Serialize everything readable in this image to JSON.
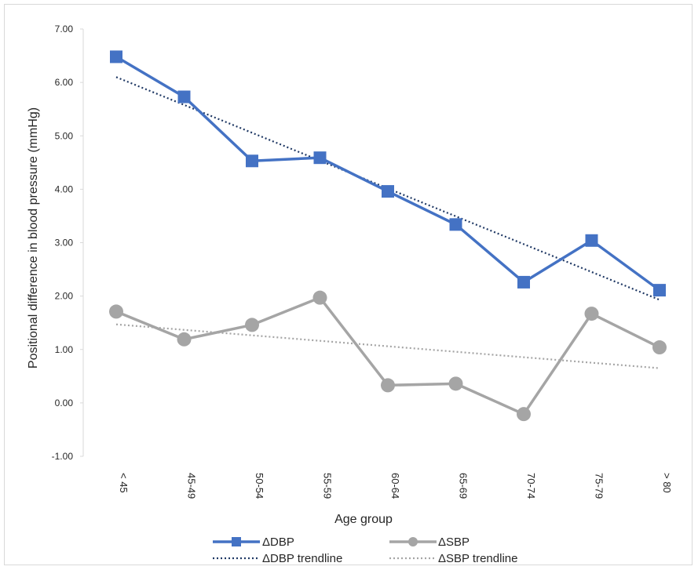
{
  "chart_data": {
    "type": "line",
    "title": "",
    "xlabel": "Age group",
    "ylabel": "Positional difference in blood pressure (mmHg)",
    "categories": [
      "< 45",
      "45-49",
      "50-54",
      "55-59",
      "60-64",
      "65-69",
      "70-74",
      "75-79",
      "> 80"
    ],
    "ylim": [
      -1.0,
      7.0
    ],
    "y_ticks": [
      "-1.00",
      "0.00",
      "1.00",
      "2.00",
      "3.00",
      "4.00",
      "5.00",
      "6.00",
      "7.00"
    ],
    "grid": false,
    "legend_position": "bottom",
    "series": [
      {
        "name": "ΔDBP",
        "marker": "square",
        "color": "#4472c4",
        "values": [
          6.48,
          5.73,
          4.53,
          4.59,
          3.96,
          3.34,
          2.26,
          3.04,
          2.11
        ]
      },
      {
        "name": "ΔSBP",
        "marker": "circle",
        "color": "#a5a5a5",
        "values": [
          1.71,
          1.19,
          1.46,
          1.97,
          0.33,
          0.36,
          -0.21,
          1.67,
          1.04
        ]
      }
    ],
    "trendlines": [
      {
        "name": "ΔDBP trendline",
        "color": "#1f3864",
        "style": "dotted",
        "start": 6.1,
        "end": 1.93
      },
      {
        "name": "ΔSBP trendline",
        "color": "#a5a5a5",
        "style": "dotted",
        "start": 1.47,
        "end": 0.65
      }
    ]
  }
}
